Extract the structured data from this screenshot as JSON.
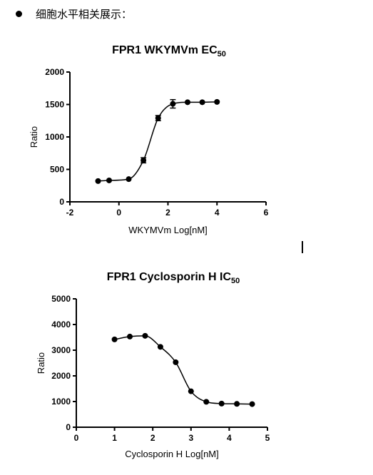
{
  "header": {
    "text": "细胞水平相关展示："
  },
  "chart_data": [
    {
      "type": "scatter",
      "title": "FPR1 WKYMVm EC",
      "title_subscript": "50",
      "xlabel": "WKYMVm Log[nM]",
      "ylabel": "Ratio",
      "xlim": [
        -2,
        6
      ],
      "ylim": [
        0,
        2000
      ],
      "xticks": [
        -2,
        0,
        2,
        4,
        6
      ],
      "yticks": [
        0,
        500,
        1000,
        1500,
        2000
      ],
      "grid": false,
      "fit": "sigmoidal",
      "series": [
        {
          "x": [
            -0.85,
            -0.4,
            0.4,
            1.0,
            1.6,
            2.2,
            2.8,
            3.4,
            4.0
          ],
          "y": [
            320,
            330,
            350,
            640,
            1290,
            1510,
            1535,
            1535,
            1540
          ],
          "err": [
            0,
            0,
            0,
            40,
            40,
            65,
            0,
            0,
            0
          ]
        }
      ]
    },
    {
      "type": "scatter",
      "title": "FPR1 Cyclosporin H IC",
      "title_subscript": "50",
      "xlabel": "Cyclosporin H  Log[nM]",
      "ylabel": "Ratio",
      "xlim": [
        0,
        5
      ],
      "ylim": [
        0,
        5000
      ],
      "xticks": [
        0,
        1,
        2,
        3,
        4,
        5
      ],
      "yticks": [
        0,
        1000,
        2000,
        3000,
        4000,
        5000
      ],
      "grid": false,
      "fit": "sigmoidal",
      "series": [
        {
          "x": [
            1.0,
            1.4,
            1.8,
            2.2,
            2.6,
            3.0,
            3.4,
            3.8,
            4.2,
            4.6
          ],
          "y": [
            3420,
            3530,
            3560,
            3130,
            2530,
            1400,
            990,
            920,
            910,
            900
          ],
          "err": [
            0,
            0,
            0,
            0,
            0,
            0,
            0,
            0,
            0,
            0
          ]
        }
      ]
    }
  ]
}
